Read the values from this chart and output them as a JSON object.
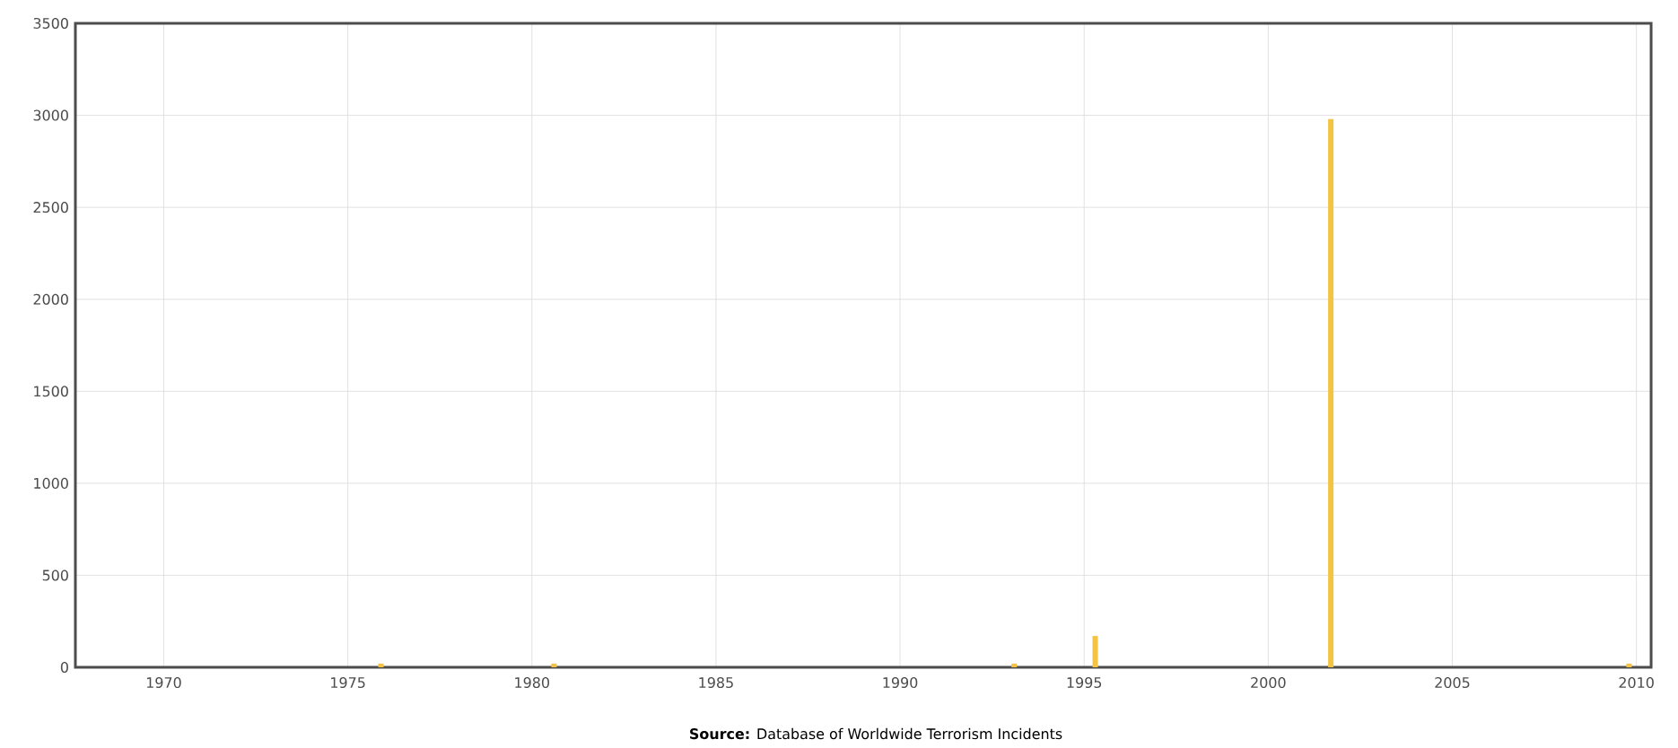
{
  "chart_data": {
    "type": "bar",
    "x": [
      1975.9,
      1980.6,
      1993.1,
      1995.3,
      2001.7,
      2009.8
    ],
    "values": [
      20,
      20,
      20,
      170,
      2980,
      20
    ],
    "color": "#f5c342",
    "xlim": [
      1967.6,
      2010.4
    ],
    "ylim": [
      0,
      3500
    ],
    "xticks": [
      1970,
      1975,
      1980,
      1985,
      1990,
      1995,
      2000,
      2005,
      2010
    ],
    "yticks": [
      0,
      500,
      1000,
      1500,
      2000,
      2500,
      3000,
      3500
    ],
    "grid": true,
    "annotations": [
      "**Source:** Database of Worldwide Terrorism Incidents"
    ]
  }
}
